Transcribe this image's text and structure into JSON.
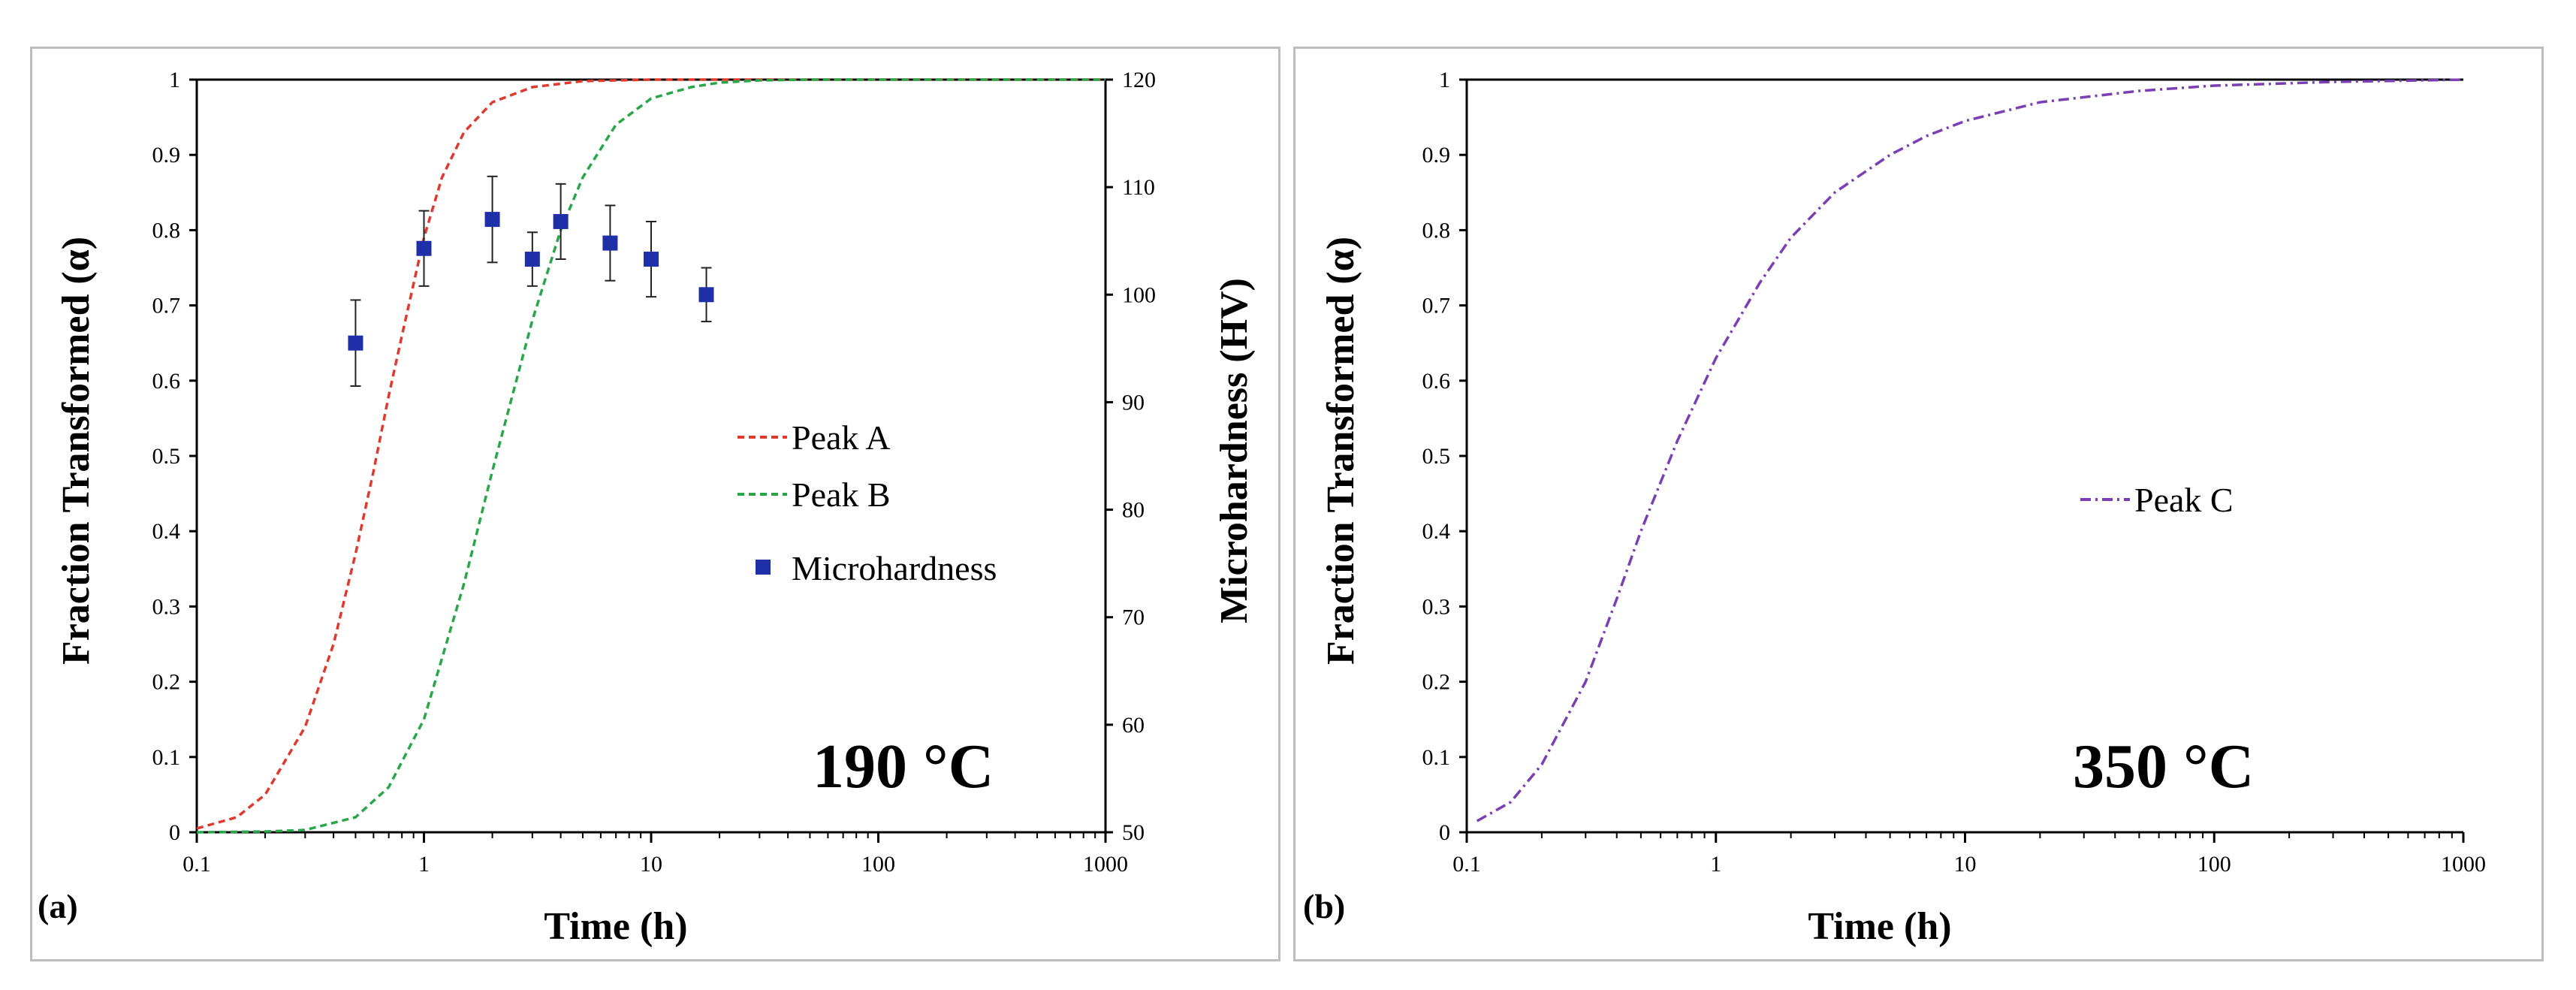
{
  "chart_data": [
    {
      "type": "line",
      "panel_label": "(a)",
      "annotation": "190 °C",
      "xlabel": "Time (h)",
      "ylabel": "Fraction Transformed (α)",
      "ylabel_right": "Microhardness (HV)",
      "xscale": "log",
      "xlim": [
        0.1,
        1000
      ],
      "ylim": [
        0,
        1
      ],
      "ylim_right": [
        50,
        120
      ],
      "x_ticks": [
        0.1,
        1,
        10,
        100,
        1000
      ],
      "x_tick_labels": [
        "0.1",
        "1",
        "10",
        "100",
        "1000"
      ],
      "y_ticks": [
        0,
        0.1,
        0.2,
        0.3,
        0.4,
        0.5,
        0.6,
        0.7,
        0.8,
        0.9,
        1
      ],
      "y_tick_labels": [
        "0",
        "0.1",
        "0.2",
        "0.3",
        "0.4",
        "0.5",
        "0.6",
        "0.7",
        "0.8",
        "0.9",
        "1"
      ],
      "y_ticks_right": [
        50,
        60,
        70,
        80,
        90,
        100,
        110,
        120
      ],
      "y_tick_labels_right": [
        "50",
        "60",
        "70",
        "80",
        "90",
        "100",
        "110",
        "120"
      ],
      "legend_position": "center-right",
      "series": [
        {
          "name": "Peak A",
          "style": "dashed",
          "color": "#e03a2f",
          "x": [
            0.1,
            0.15,
            0.2,
            0.3,
            0.4,
            0.5,
            0.6,
            0.7,
            0.8,
            1,
            1.2,
            1.5,
            2,
            3,
            5,
            10,
            20,
            50,
            1000
          ],
          "y": [
            0.005,
            0.02,
            0.05,
            0.14,
            0.25,
            0.37,
            0.48,
            0.58,
            0.66,
            0.79,
            0.87,
            0.93,
            0.97,
            0.99,
            0.998,
            1,
            1,
            1,
            1
          ]
        },
        {
          "name": "Peak B",
          "style": "dashed",
          "color": "#2aa64a",
          "x": [
            0.1,
            0.2,
            0.3,
            0.5,
            0.7,
            1,
            1.5,
            2,
            3,
            4,
            5,
            7,
            10,
            15,
            20,
            30,
            50,
            100,
            1000
          ],
          "y": [
            0,
            0.001,
            0.003,
            0.02,
            0.06,
            0.15,
            0.33,
            0.48,
            0.68,
            0.8,
            0.87,
            0.94,
            0.975,
            0.99,
            0.996,
            0.999,
            1,
            1,
            1
          ]
        },
        {
          "name": "Microhardness",
          "style": "markers",
          "color": "#1f2fa8",
          "axis": "right",
          "x": [
            0.5,
            1,
            2,
            3,
            4,
            6.6,
            10,
            17.5
          ],
          "y": [
            95.5,
            104.3,
            107,
            103.3,
            106.8,
            104.8,
            103.3,
            100
          ],
          "err": [
            4,
            3.5,
            4,
            2.5,
            3.5,
            3.5,
            3.5,
            2.5
          ]
        }
      ]
    },
    {
      "type": "line",
      "panel_label": "(b)",
      "annotation": "350 °C",
      "xlabel": "Time (h)",
      "ylabel": "Fraction Transformed (α)",
      "xscale": "log",
      "xlim": [
        0.1,
        1000
      ],
      "ylim": [
        0,
        1
      ],
      "x_ticks": [
        0.1,
        1,
        10,
        100,
        1000
      ],
      "x_tick_labels": [
        "0.1",
        "1",
        "10",
        "100",
        "1000"
      ],
      "y_ticks": [
        0,
        0.1,
        0.2,
        0.3,
        0.4,
        0.5,
        0.6,
        0.7,
        0.8,
        0.9,
        1
      ],
      "y_tick_labels": [
        "0",
        "0.1",
        "0.2",
        "0.3",
        "0.4",
        "0.5",
        "0.6",
        "0.7",
        "0.8",
        "0.9",
        "1"
      ],
      "legend_position": "center-right",
      "series": [
        {
          "name": "Peak C",
          "style": "dashdot",
          "color": "#7a3fb3",
          "x": [
            0.11,
            0.15,
            0.2,
            0.3,
            0.4,
            0.5,
            0.7,
            1,
            1.5,
            2,
            3,
            5,
            7,
            10,
            20,
            50,
            100,
            300,
            1000
          ],
          "y": [
            0.015,
            0.04,
            0.09,
            0.2,
            0.31,
            0.4,
            0.52,
            0.63,
            0.73,
            0.79,
            0.85,
            0.9,
            0.925,
            0.945,
            0.97,
            0.985,
            0.992,
            0.997,
            1
          ]
        }
      ]
    }
  ]
}
